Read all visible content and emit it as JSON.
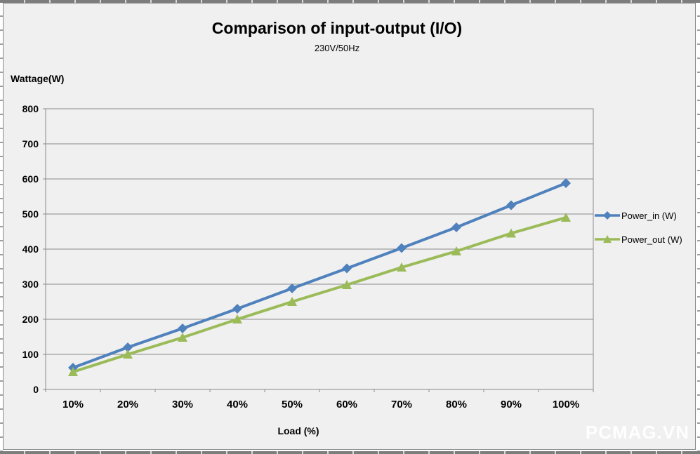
{
  "chart_title": "Comparison of input-output (I/O)",
  "chart_subtitle": "230V/50Hz",
  "watermark": "PCMAG.VN",
  "colors": {
    "power_in": "#4F81BD",
    "power_out": "#9BBB59",
    "gridline": "#8A8A8A",
    "chart_background": "#F0F0F0",
    "text": "#000000",
    "watermark": "#FFFFFF"
  },
  "chart_data": {
    "type": "line",
    "title": "Comparison of input-output (I/O)",
    "subtitle": "230V/50Hz",
    "xlabel": "Load (%)",
    "ylabel": "Wattage(W)",
    "categories": [
      "10%",
      "20%",
      "30%",
      "40%",
      "50%",
      "60%",
      "70%",
      "80%",
      "90%",
      "100%"
    ],
    "series": [
      {
        "name": "Power_in (W)",
        "color": "#4F81BD",
        "marker": "diamond",
        "values": [
          62,
          120,
          174,
          230,
          288,
          345,
          403,
          462,
          525,
          588
        ]
      },
      {
        "name": "Power_out (W)",
        "color": "#9BBB59",
        "marker": "triangle",
        "values": [
          50,
          100,
          148,
          200,
          250,
          298,
          348,
          394,
          445,
          490
        ]
      }
    ],
    "ylim": [
      0,
      800
    ],
    "y_ticks": [
      0,
      100,
      200,
      300,
      400,
      500,
      600,
      700,
      800
    ],
    "grid": true,
    "legend_position": "right"
  }
}
